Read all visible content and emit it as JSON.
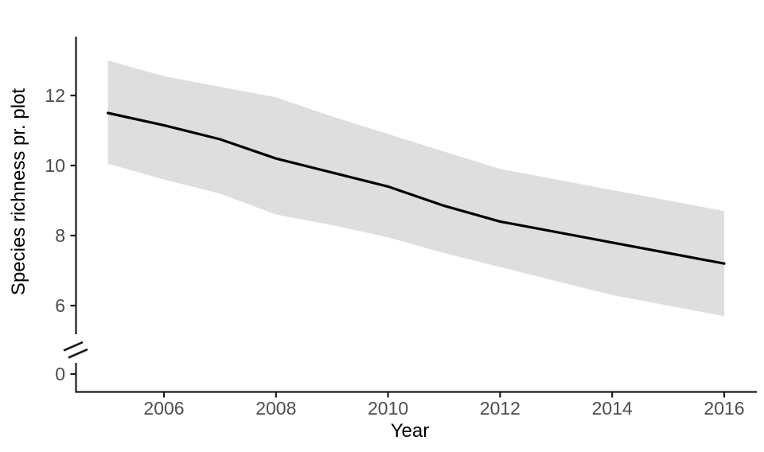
{
  "chart_data": {
    "type": "line",
    "title": "",
    "xlabel": "Year",
    "ylabel": "Species richness pr. plot",
    "x": [
      2005,
      2006,
      2007,
      2008,
      2009,
      2010,
      2011,
      2012,
      2013,
      2014,
      2015,
      2016
    ],
    "series": [
      {
        "name": "predicted-species-richness",
        "values": [
          11.5,
          11.15,
          10.75,
          10.2,
          9.8,
          9.4,
          8.85,
          8.4,
          8.1,
          7.8,
          7.5,
          7.2
        ]
      },
      {
        "name": "confidence-upper",
        "values": [
          13.0,
          12.55,
          12.25,
          11.95,
          11.4,
          10.9,
          10.4,
          9.9,
          9.6,
          9.3,
          9.0,
          8.7
        ]
      },
      {
        "name": "confidence-lower",
        "values": [
          10.05,
          9.6,
          9.2,
          8.6,
          8.3,
          7.95,
          7.5,
          7.1,
          6.7,
          6.3,
          6.0,
          5.7
        ]
      }
    ],
    "x_tick_labels": [
      "2006",
      "2008",
      "2010",
      "2012",
      "2014",
      "2016"
    ],
    "x_tick_values": [
      2006,
      2008,
      2010,
      2012,
      2014,
      2016
    ],
    "y_tick_labels": [
      "0",
      "6",
      "8",
      "10",
      "12"
    ],
    "y_tick_values": [
      0,
      6,
      8,
      10,
      12
    ],
    "y_axis_break": true,
    "xlim": [
      2004.4,
      2016.6
    ],
    "ylim": [
      0,
      13.8
    ],
    "grid": false,
    "legend_position": "none",
    "colors": {
      "line": "#000000",
      "ribbon": "#dedede",
      "axis": "#1c1c1c",
      "tick_label": "#4d4d4d",
      "axis_title": "#000000"
    }
  }
}
